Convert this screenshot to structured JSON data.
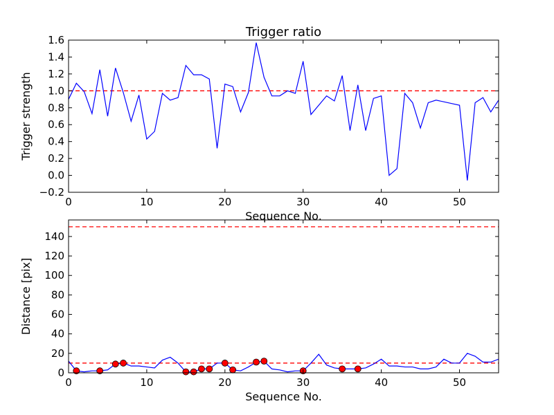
{
  "chart_data": [
    {
      "type": "line",
      "title": "Trigger ratio",
      "xlabel": "Sequence No.",
      "ylabel": "Trigger strength",
      "xlim": [
        0,
        55
      ],
      "ylim": [
        -0.2,
        1.6
      ],
      "xticks": [
        0,
        10,
        20,
        30,
        40,
        50
      ],
      "yticks": [
        -0.2,
        0.0,
        0.2,
        0.4,
        0.6,
        0.8,
        1.0,
        1.2,
        1.4,
        1.6
      ],
      "ytick_labels": [
        "−0.2",
        "0.0",
        "0.2",
        "0.4",
        "0.6",
        "0.8",
        "1.0",
        "1.2",
        "1.4",
        "1.6"
      ],
      "grid": false,
      "line_color": "#0000ff",
      "threshold": {
        "y": 1.0,
        "color": "#ff0000",
        "style": "dashed"
      },
      "series": [
        {
          "x": [
            0,
            1,
            2,
            3,
            4,
            5,
            6,
            7,
            8,
            9,
            10,
            11,
            12,
            13,
            14,
            15,
            16,
            17,
            18,
            19,
            20,
            21,
            22,
            23,
            24,
            25,
            26,
            27,
            28,
            29,
            30,
            31,
            32,
            33,
            34,
            35,
            36,
            37,
            38,
            39,
            40,
            41,
            42,
            43,
            44,
            45,
            46,
            47,
            48,
            49,
            50,
            51,
            52,
            53,
            54,
            55
          ],
          "y": [
            0.9,
            1.09,
            0.99,
            0.73,
            1.25,
            0.7,
            1.27,
            0.98,
            0.64,
            0.95,
            0.43,
            0.52,
            0.97,
            0.89,
            0.92,
            1.3,
            1.19,
            1.19,
            1.14,
            0.32,
            1.08,
            1.05,
            0.75,
            0.98,
            1.57,
            1.16,
            0.94,
            0.94,
            1.0,
            0.97,
            1.35,
            0.72,
            0.83,
            0.94,
            0.88,
            1.18,
            0.53,
            1.07,
            0.53,
            0.91,
            0.94,
            0.0,
            0.08,
            0.97,
            0.86,
            0.56,
            0.86,
            0.89,
            0.87,
            0.85,
            0.83,
            -0.06,
            0.86,
            0.92,
            0.75,
            0.89
          ]
        }
      ]
    },
    {
      "type": "line",
      "title": "",
      "xlabel": "Sequence No.",
      "ylabel": "Distance [pix]",
      "xlim": [
        0,
        55
      ],
      "ylim": [
        0,
        157
      ],
      "xticks": [
        0,
        10,
        20,
        30,
        40,
        50
      ],
      "yticks": [
        0,
        20,
        40,
        60,
        80,
        100,
        120,
        140
      ],
      "grid": false,
      "line_color": "#0000ff",
      "marker_color": "#ff0000",
      "thresholds": [
        {
          "y": 150,
          "color": "#ff0000",
          "style": "dashed"
        },
        {
          "y": 10,
          "color": "#ff0000",
          "style": "dashed"
        }
      ],
      "series": [
        {
          "x": [
            0,
            1,
            2,
            3,
            4,
            5,
            6,
            7,
            8,
            9,
            10,
            11,
            12,
            13,
            14,
            15,
            16,
            17,
            18,
            19,
            20,
            21,
            22,
            23,
            24,
            25,
            26,
            27,
            28,
            29,
            30,
            31,
            32,
            33,
            34,
            35,
            36,
            37,
            38,
            39,
            40,
            41,
            42,
            43,
            44,
            45,
            46,
            47,
            48,
            49,
            50,
            51,
            52,
            53,
            54,
            55
          ],
          "y": [
            12,
            2,
            1,
            2,
            2,
            3,
            9,
            10,
            7,
            7,
            6,
            5,
            13,
            16,
            10,
            1,
            1,
            4,
            4,
            10,
            10,
            3,
            2,
            6,
            11,
            12,
            4,
            3,
            1,
            2,
            2,
            10,
            19,
            8,
            5,
            4,
            4,
            4,
            5,
            9,
            14,
            7,
            7,
            6,
            6,
            4,
            4,
            6,
            14,
            10,
            10,
            20,
            17,
            11,
            11,
            14
          ]
        },
        {
          "name": "",
          "kind": "markers",
          "x": [
            1,
            4,
            6,
            7,
            15,
            16,
            17,
            18,
            20,
            21,
            24,
            25,
            30,
            35,
            37
          ],
          "y": [
            2,
            2,
            9,
            10,
            1,
            1,
            4,
            4,
            10,
            3,
            11,
            12,
            2,
            4,
            4
          ]
        }
      ]
    }
  ]
}
